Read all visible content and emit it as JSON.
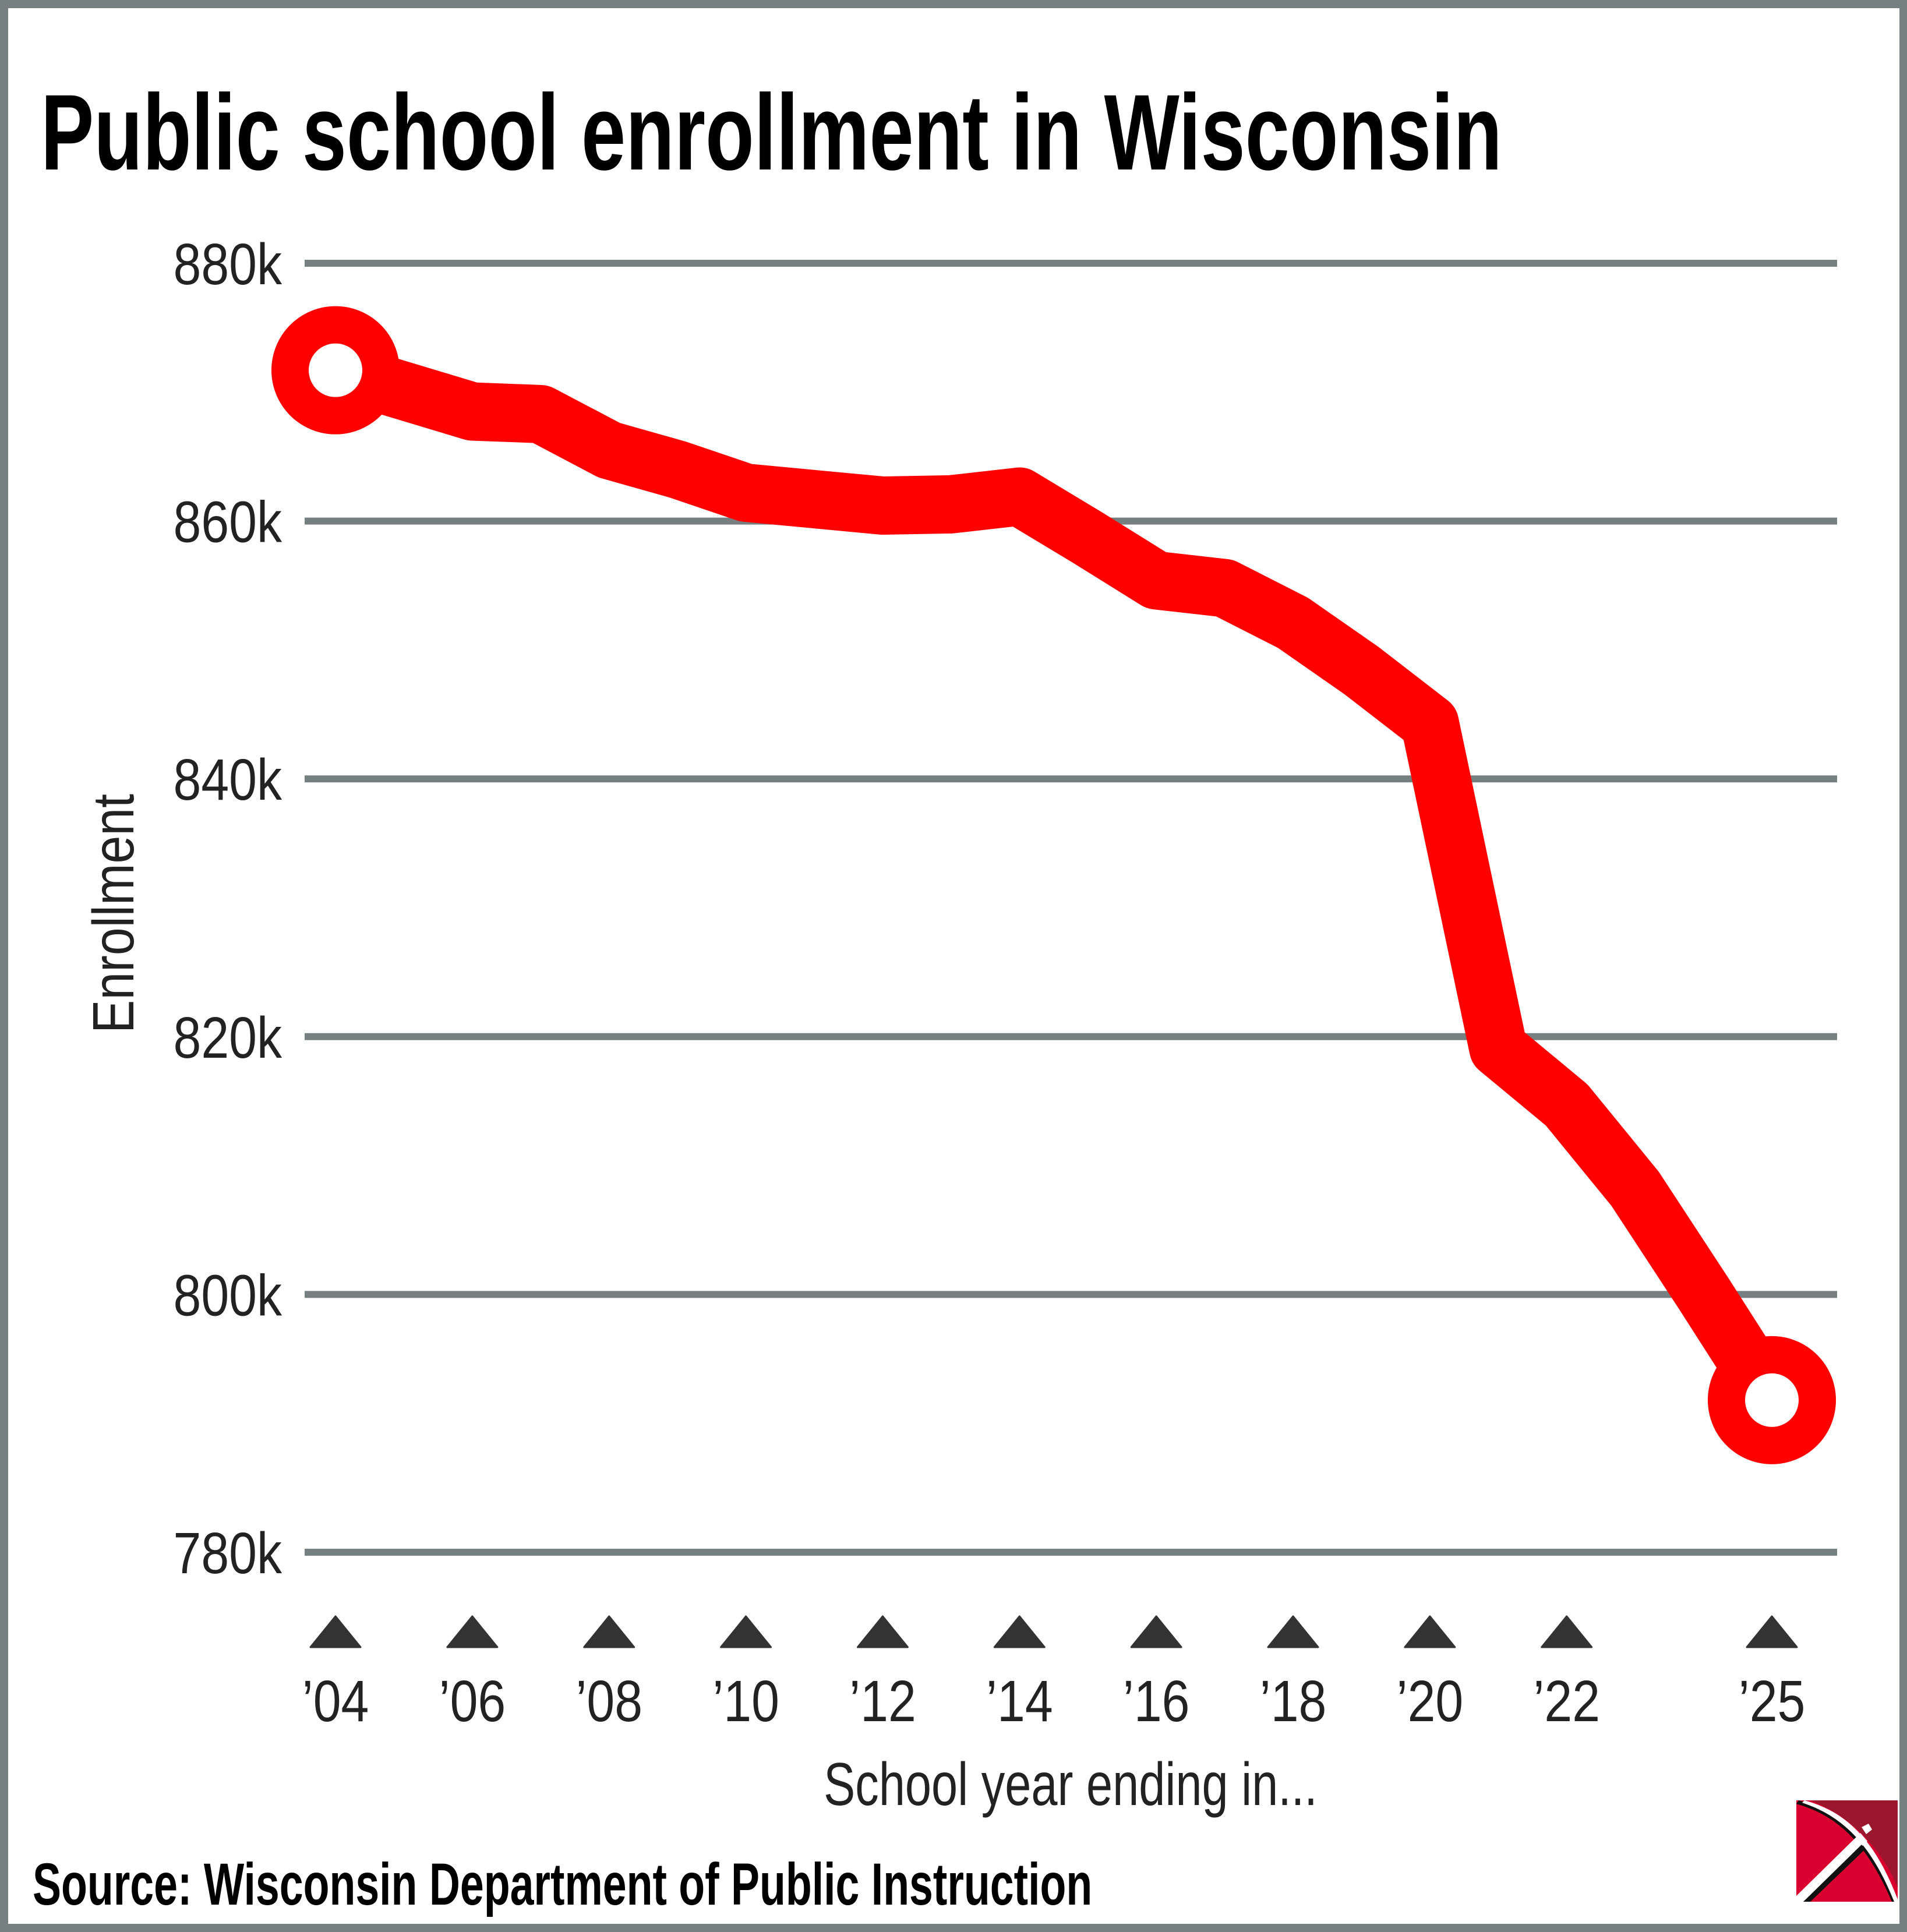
{
  "title": "Public school enrollment in Wisconsin",
  "source": "Source: Wisconsin Department of Public Instruction",
  "logo": {
    "icon": "pickaxe-logo-icon",
    "colors": {
      "primary": "#d9002f",
      "secondary": "#9b172d"
    }
  },
  "colors": {
    "line": "#ff0000",
    "grid": "#778080",
    "text": "#222222",
    "frame": "#778080"
  },
  "chart_data": {
    "type": "line",
    "title": "Public school enrollment in Wisconsin",
    "xlabel": "School year ending in...",
    "ylabel": "Enrollment",
    "ylim": [
      780,
      880
    ],
    "y_unit": "thousands",
    "yticks": [
      880,
      860,
      840,
      820,
      800,
      780
    ],
    "ytick_labels": [
      "880k",
      "860k",
      "840k",
      "820k",
      "800k",
      "780k"
    ],
    "xlim": [
      2004,
      2025
    ],
    "xticks": [
      2004,
      2006,
      2008,
      2010,
      2012,
      2014,
      2016,
      2018,
      2020,
      2022,
      2025
    ],
    "xtick_labels": [
      "’04",
      "’06",
      "’08",
      "’10",
      "’12",
      "’14",
      "’16",
      "’18",
      "’20",
      "’22",
      "’25"
    ],
    "grid": true,
    "legend": "none",
    "series": [
      {
        "name": "Enrollment",
        "x": [
          2004,
          2005,
          2006,
          2007,
          2008,
          2009,
          2010,
          2011,
          2012,
          2013,
          2014,
          2015,
          2016,
          2017,
          2018,
          2019,
          2020,
          2021,
          2022,
          2023,
          2024,
          2025
        ],
        "values": [
          871.7,
          870.1,
          868.5,
          868.3,
          865.5,
          864.0,
          862.2,
          861.7,
          861.2,
          861.3,
          861.9,
          858.7,
          855.4,
          854.8,
          852.1,
          848.4,
          844.3,
          819.1,
          814.7,
          808.2,
          800.1,
          791.8
        ],
        "endpoint_markers": [
          2004,
          2025
        ]
      }
    ]
  }
}
